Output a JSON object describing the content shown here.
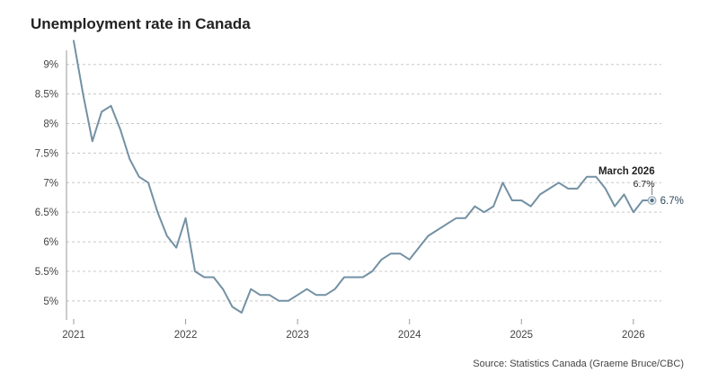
{
  "chart_data": {
    "type": "line",
    "title": "Unemployment rate in Canada",
    "source": "Source: Statistics Canada (Graeme Bruce/CBC)",
    "xlabel": "",
    "ylabel": "",
    "ylim": [
      4.8,
      9.3
    ],
    "yticks": [
      5,
      5.5,
      6,
      6.5,
      7,
      7.5,
      8,
      8.5,
      9
    ],
    "ytick_labels": [
      "5%",
      "5.5%",
      "6%",
      "6.5%",
      "7%",
      "7.5%",
      "8%",
      "8.5%",
      "9%"
    ],
    "xlim": [
      "2021-01",
      "2026-04"
    ],
    "xticks": [
      "2021",
      "2022",
      "2023",
      "2024",
      "2025",
      "2026"
    ],
    "grid": true,
    "series_color": "#7391a3",
    "series": [
      {
        "name": "Unemployment rate",
        "unit": "%",
        "start": "2021-01",
        "frequency": "monthly",
        "values": [
          9.4,
          8.5,
          7.7,
          8.2,
          8.3,
          7.9,
          7.4,
          7.1,
          7.0,
          6.5,
          6.1,
          5.9,
          6.4,
          5.5,
          5.4,
          5.4,
          5.2,
          4.9,
          4.8,
          5.2,
          5.1,
          5.1,
          5.0,
          5.0,
          5.1,
          5.2,
          5.1,
          5.1,
          5.2,
          5.4,
          5.4,
          5.4,
          5.5,
          5.7,
          5.8,
          5.8,
          5.7,
          5.9,
          6.1,
          6.2,
          6.3,
          6.4,
          6.4,
          6.6,
          6.5,
          6.6,
          7.0,
          6.7,
          6.7,
          6.6,
          6.8,
          6.9,
          7.0,
          6.9,
          6.9,
          7.1,
          7.1,
          6.9,
          6.6,
          6.8,
          6.5,
          6.7,
          6.7
        ]
      }
    ],
    "annotation": {
      "title": "March 2026",
      "value": "6.7%",
      "end_label": "6.7%"
    }
  }
}
